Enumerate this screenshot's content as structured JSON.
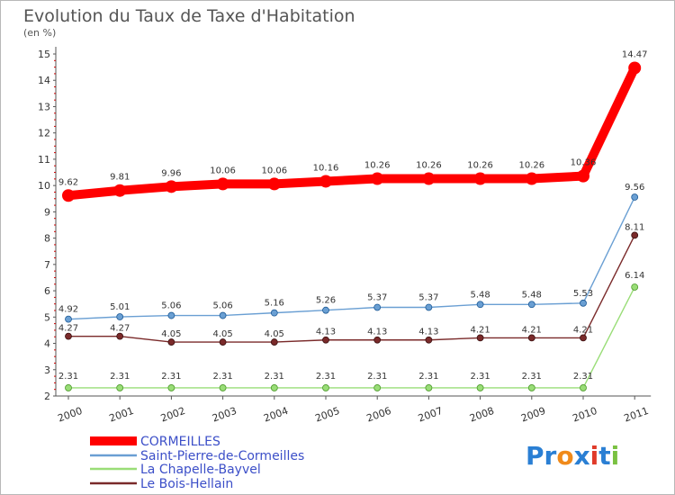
{
  "chart_data": {
    "type": "line",
    "title": "Evolution du Taux de Taxe d'Habitation",
    "subtitle": "(en %)",
    "x": [
      "2000",
      "2001",
      "2002",
      "2003",
      "2004",
      "2005",
      "2006",
      "2007",
      "2008",
      "2009",
      "2010",
      "2011"
    ],
    "ylim": [
      2,
      15
    ],
    "yticks": [
      "2",
      "3",
      "4",
      "5",
      "6",
      "7",
      "8",
      "9",
      "10",
      "11",
      "12",
      "13",
      "14",
      "15"
    ],
    "grid": false,
    "legend_position": "bottom-left",
    "series": [
      {
        "name": "CORMEILLES",
        "color": "#ff0000",
        "values": [
          9.62,
          9.81,
          9.96,
          10.06,
          10.06,
          10.16,
          10.26,
          10.26,
          10.26,
          10.26,
          10.36,
          14.47
        ],
        "labels": [
          "9.62",
          "9.81",
          "9.96",
          "10.06",
          "10.06",
          "10.16",
          "10.26",
          "10.26",
          "10.26",
          "10.26",
          "10.36",
          "14.47"
        ]
      },
      {
        "name": "Saint-Pierre-de-Cormeilles",
        "color": "#6a9fd3",
        "values": [
          4.92,
          5.01,
          5.06,
          5.06,
          5.16,
          5.26,
          5.37,
          5.37,
          5.48,
          5.48,
          5.53,
          9.56
        ],
        "labels": [
          "4.92",
          "5.01",
          "5.06",
          "5.06",
          "5.16",
          "5.26",
          "5.37",
          "5.37",
          "5.48",
          "5.48",
          "5.53",
          "9.56"
        ]
      },
      {
        "name": "La Chapelle-Bayvel",
        "color": "#99dd77",
        "values": [
          2.31,
          2.31,
          2.31,
          2.31,
          2.31,
          2.31,
          2.31,
          2.31,
          2.31,
          2.31,
          2.31,
          6.14
        ],
        "labels": [
          "2.31",
          "2.31",
          "2.31",
          "2.31",
          "2.31",
          "2.31",
          "2.31",
          "2.31",
          "2.31",
          "2.31",
          "2.31",
          "6.14"
        ]
      },
      {
        "name": "Le Bois-Hellain",
        "color": "#7a2a2a",
        "values": [
          4.27,
          4.27,
          4.05,
          4.05,
          4.05,
          4.13,
          4.13,
          4.13,
          4.21,
          4.21,
          4.21,
          8.11
        ],
        "labels": [
          "4.27",
          "4.27",
          "4.05",
          "4.05",
          "4.05",
          "4.13",
          "4.13",
          "4.13",
          "4.21",
          "4.21",
          "4.21",
          "8.11"
        ]
      }
    ]
  },
  "logo": {
    "text": "Proxiti",
    "letters": [
      {
        "ch": "P",
        "color": "#2a7fd4"
      },
      {
        "ch": "r",
        "color": "#2a7fd4"
      },
      {
        "ch": "o",
        "color": "#f08a1a"
      },
      {
        "ch": "x",
        "color": "#2a7fd4"
      },
      {
        "ch": "i",
        "color": "#e03a2a"
      },
      {
        "ch": "t",
        "color": "#2a7fd4"
      },
      {
        "ch": "i",
        "color": "#7ac142"
      }
    ]
  }
}
